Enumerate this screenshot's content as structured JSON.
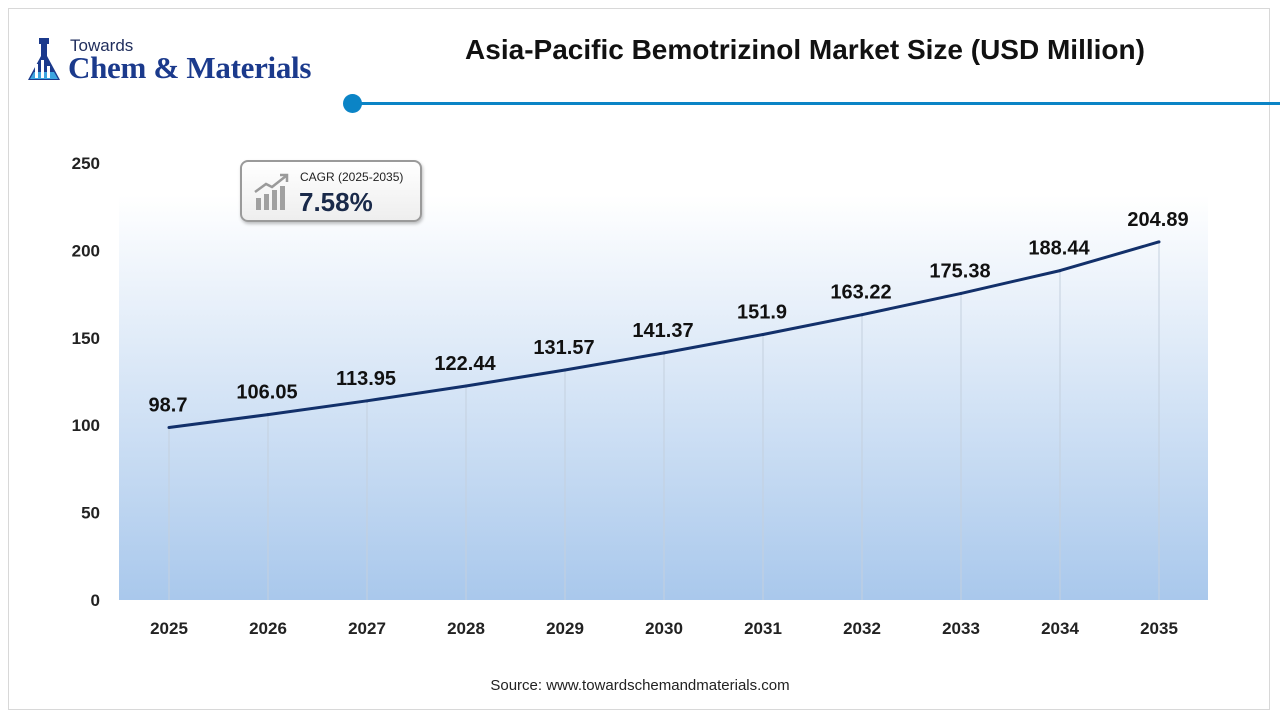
{
  "brand": {
    "line1": "Towards",
    "line2": "Chem & Materials"
  },
  "header": {
    "title": "Asia-Pacific Bemotrizinol Market Size (USD Million)"
  },
  "cagr": {
    "label": "CAGR (2025-2035)",
    "value": "7.58%"
  },
  "footer": {
    "source": "Source: www.towardschemandmaterials.com"
  },
  "colors": {
    "accent": "#0b84c6",
    "line": "#12306a",
    "area_top": "#ffffff",
    "area_bottom": "#a9c8ec"
  },
  "chart_data": {
    "type": "area",
    "title": "Asia-Pacific Bemotrizinol Market Size (USD Million)",
    "xlabel": "",
    "ylabel": "",
    "categories": [
      "2025",
      "2026",
      "2027",
      "2028",
      "2029",
      "2030",
      "2031",
      "2032",
      "2033",
      "2034",
      "2035"
    ],
    "values": [
      98.7,
      106.05,
      113.95,
      122.44,
      131.57,
      141.37,
      151.9,
      163.22,
      175.38,
      188.44,
      204.89
    ],
    "value_labels": [
      "98.7",
      "106.05",
      "113.95",
      "122.44",
      "131.57",
      "141.37",
      "151.9",
      "163.22",
      "175.38",
      "188.44",
      "204.89"
    ],
    "ylim": [
      0,
      250
    ],
    "yticks": [
      "0",
      "50",
      "100",
      "150",
      "200",
      "250"
    ],
    "grid": "vertical lines at each category",
    "legend": "none"
  }
}
